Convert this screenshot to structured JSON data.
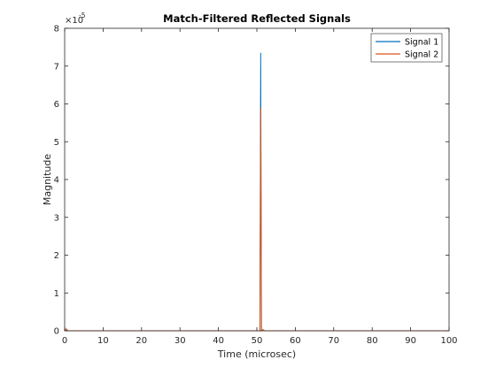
{
  "chart_data": {
    "type": "line",
    "title": "Match-Filtered Reflected Signals",
    "xlabel": "Time (microsec)",
    "ylabel": "Magnitude",
    "xlim": [
      0,
      100
    ],
    "ylim": [
      0,
      8
    ],
    "y_exponent_label": "×10",
    "y_exponent_power": "-5",
    "x_ticks": [
      0,
      10,
      20,
      30,
      40,
      50,
      60,
      70,
      80,
      90,
      100
    ],
    "y_ticks": [
      0,
      1,
      2,
      3,
      4,
      5,
      6,
      7,
      8
    ],
    "grid": false,
    "legend_position": "top-right",
    "series": [
      {
        "name": "Signal 1",
        "color": "#0072bd",
        "points": [
          [
            0,
            0
          ],
          [
            0.4,
            0.05
          ],
          [
            0.8,
            0
          ],
          [
            50.8,
            0
          ],
          [
            51.0,
            7.35
          ],
          [
            51.2,
            0
          ],
          [
            51.6,
            0.03
          ],
          [
            52.0,
            0
          ],
          [
            100,
            0
          ]
        ]
      },
      {
        "name": "Signal 2",
        "color": "#d95319",
        "points": [
          [
            0,
            0
          ],
          [
            0.4,
            0.05
          ],
          [
            0.8,
            0
          ],
          [
            50.8,
            0
          ],
          [
            51.0,
            5.9
          ],
          [
            51.2,
            0
          ],
          [
            51.6,
            0.03
          ],
          [
            52.0,
            0
          ],
          [
            100,
            0
          ]
        ]
      }
    ]
  }
}
